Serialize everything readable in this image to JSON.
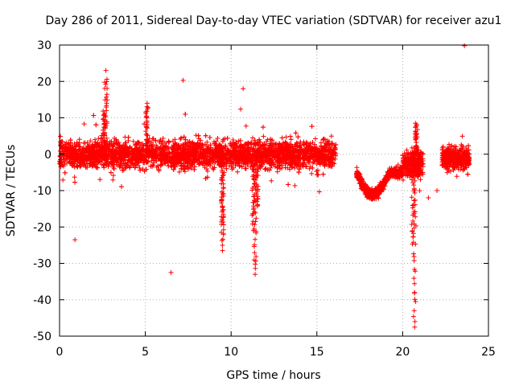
{
  "chart_data": {
    "type": "scatter",
    "title": "Day 286 of 2011, Sidereal Day-to-day VTEC variation (SDTVAR) for receiver azu1",
    "xlabel": "GPS time / hours",
    "ylabel": "SDTVAR / TECUs",
    "xlim": [
      0,
      25
    ],
    "ylim": [
      -50,
      30
    ],
    "xticks": [
      0,
      5,
      10,
      15,
      20,
      25
    ],
    "yticks": [
      -50,
      -40,
      -30,
      -20,
      -10,
      0,
      10,
      20,
      30
    ],
    "grid": true,
    "marker": "+",
    "series_color": "#ff0000",
    "segments": [
      {
        "x": [
          0.0,
          16.1
        ],
        "y_low": -5,
        "y_high": 5
      },
      {
        "x": [
          17.3,
          20.0
        ],
        "y_low": -12,
        "y_high": -2
      },
      {
        "x": [
          20.0,
          21.2
        ],
        "y_low": -7,
        "y_high": 2
      },
      {
        "x": [
          22.3,
          23.9
        ],
        "y_low": -5,
        "y_high": 3
      }
    ],
    "outliers": [
      {
        "x": 0.9,
        "y": -23.5
      },
      {
        "x": 2.7,
        "y": 23.0
      },
      {
        "x": 6.5,
        "y": -32.5
      },
      {
        "x": 7.2,
        "y": 20.3
      },
      {
        "x": 10.7,
        "y": 18.0
      },
      {
        "x": 9.5,
        "y": -26.5
      },
      {
        "x": 11.4,
        "y": -33.0
      },
      {
        "x": 11.3,
        "y": -21.0
      },
      {
        "x": 20.7,
        "y": -47.5
      },
      {
        "x": 20.7,
        "y": -38.0
      },
      {
        "x": 23.6,
        "y": 29.8
      },
      {
        "x": 22.0,
        "y": -10.0
      },
      {
        "x": 21.5,
        "y": -12.0
      }
    ]
  }
}
